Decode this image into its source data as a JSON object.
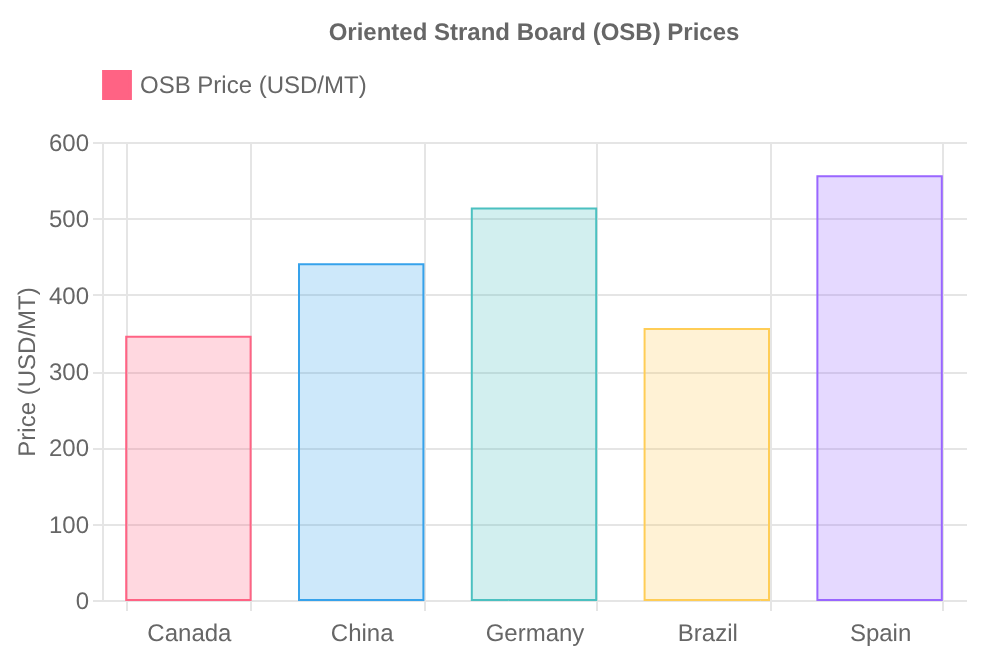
{
  "chart_data": {
    "type": "bar",
    "title": "Oriented Strand Board (OSB) Prices",
    "ylabel": "Price (USD/MT)",
    "categories": [
      "Canada",
      "China",
      "Germany",
      "Brazil",
      "Spain"
    ],
    "series": [
      {
        "name": "OSB Price (USD/MT)",
        "colors": [
          "#ff6384",
          "#36a2eb",
          "#4bc0c0",
          "#ffcd56",
          "#9966ff"
        ],
        "values": [
          345,
          440,
          513,
          355,
          555
        ]
      }
    ],
    "ylim": [
      0,
      600
    ],
    "yticks": [
      0,
      100,
      200,
      300,
      400,
      500,
      600
    ],
    "grid": true,
    "legend": "top"
  }
}
